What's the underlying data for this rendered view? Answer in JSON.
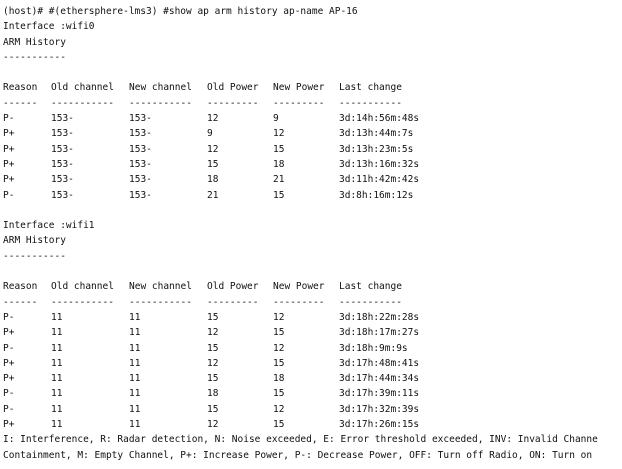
{
  "prompt_line": "(host)# #(ethersphere-lms3) #show ap arm history ap-name AP-16",
  "columns": {
    "reason": "Reason",
    "old_channel": "Old channel",
    "new_channel": "New channel",
    "old_power": "Old Power",
    "new_power": "New Power",
    "last_change": "Last change"
  },
  "dividers": {
    "reason": "------",
    "old_channel": "-----------",
    "new_channel": "-----------",
    "old_power": "---------",
    "new_power": "---------",
    "last_change": "-----------"
  },
  "sections": [
    {
      "interface_label": "Interface :wifi0",
      "history_title": "ARM History",
      "history_underline": "-----------",
      "rows": [
        {
          "reason": "P-",
          "old_channel": "153-",
          "new_channel": "153-",
          "old_power": "12",
          "new_power": "9",
          "last_change": "3d:14h:56m:48s"
        },
        {
          "reason": "P+",
          "old_channel": "153-",
          "new_channel": "153-",
          "old_power": "9",
          "new_power": "12",
          "last_change": "3d:13h:44m:7s"
        },
        {
          "reason": "P+",
          "old_channel": "153-",
          "new_channel": "153-",
          "old_power": "12",
          "new_power": "15",
          "last_change": "3d:13h:23m:5s"
        },
        {
          "reason": "P+",
          "old_channel": "153-",
          "new_channel": "153-",
          "old_power": "15",
          "new_power": "18",
          "last_change": "3d:13h:16m:32s"
        },
        {
          "reason": "P+",
          "old_channel": "153-",
          "new_channel": "153-",
          "old_power": "18",
          "new_power": "21",
          "last_change": "3d:11h:42m:42s"
        },
        {
          "reason": "P-",
          "old_channel": "153-",
          "new_channel": "153-",
          "old_power": "21",
          "new_power": "15",
          "last_change": "3d:8h:16m:12s"
        }
      ]
    },
    {
      "interface_label": "Interface :wifi1",
      "history_title": "ARM History",
      "history_underline": "-----------",
      "rows": [
        {
          "reason": "P-",
          "old_channel": "11",
          "new_channel": "11",
          "old_power": "15",
          "new_power": "12",
          "last_change": "3d:18h:22m:28s"
        },
        {
          "reason": "P+",
          "old_channel": "11",
          "new_channel": "11",
          "old_power": "12",
          "new_power": "15",
          "last_change": "3d:18h:17m:27s"
        },
        {
          "reason": "P-",
          "old_channel": "11",
          "new_channel": "11",
          "old_power": "15",
          "new_power": "12",
          "last_change": "3d:18h:9m:9s"
        },
        {
          "reason": "P+",
          "old_channel": "11",
          "new_channel": "11",
          "old_power": "12",
          "new_power": "15",
          "last_change": "3d:17h:48m:41s"
        },
        {
          "reason": "P+",
          "old_channel": "11",
          "new_channel": "11",
          "old_power": "15",
          "new_power": "18",
          "last_change": "3d:17h:44m:34s"
        },
        {
          "reason": "P-",
          "old_channel": "11",
          "new_channel": "11",
          "old_power": "18",
          "new_power": "15",
          "last_change": "3d:17h:39m:11s"
        },
        {
          "reason": "P-",
          "old_channel": "11",
          "new_channel": "11",
          "old_power": "15",
          "new_power": "12",
          "last_change": "3d:17h:32m:39s"
        },
        {
          "reason": "P+",
          "old_channel": "11",
          "new_channel": "11",
          "old_power": "12",
          "new_power": "15",
          "last_change": "3d:17h:26m:15s"
        }
      ]
    }
  ],
  "legend": [
    "I: Interference, R: Radar detection, N: Noise exceeded, E: Error threshold exceeded, INV: Invalid Channe",
    "Containment, M: Empty Channel, P+: Increase Power, P-: Decrease Power, OFF: Turn off Radio, ON: Turn on"
  ]
}
